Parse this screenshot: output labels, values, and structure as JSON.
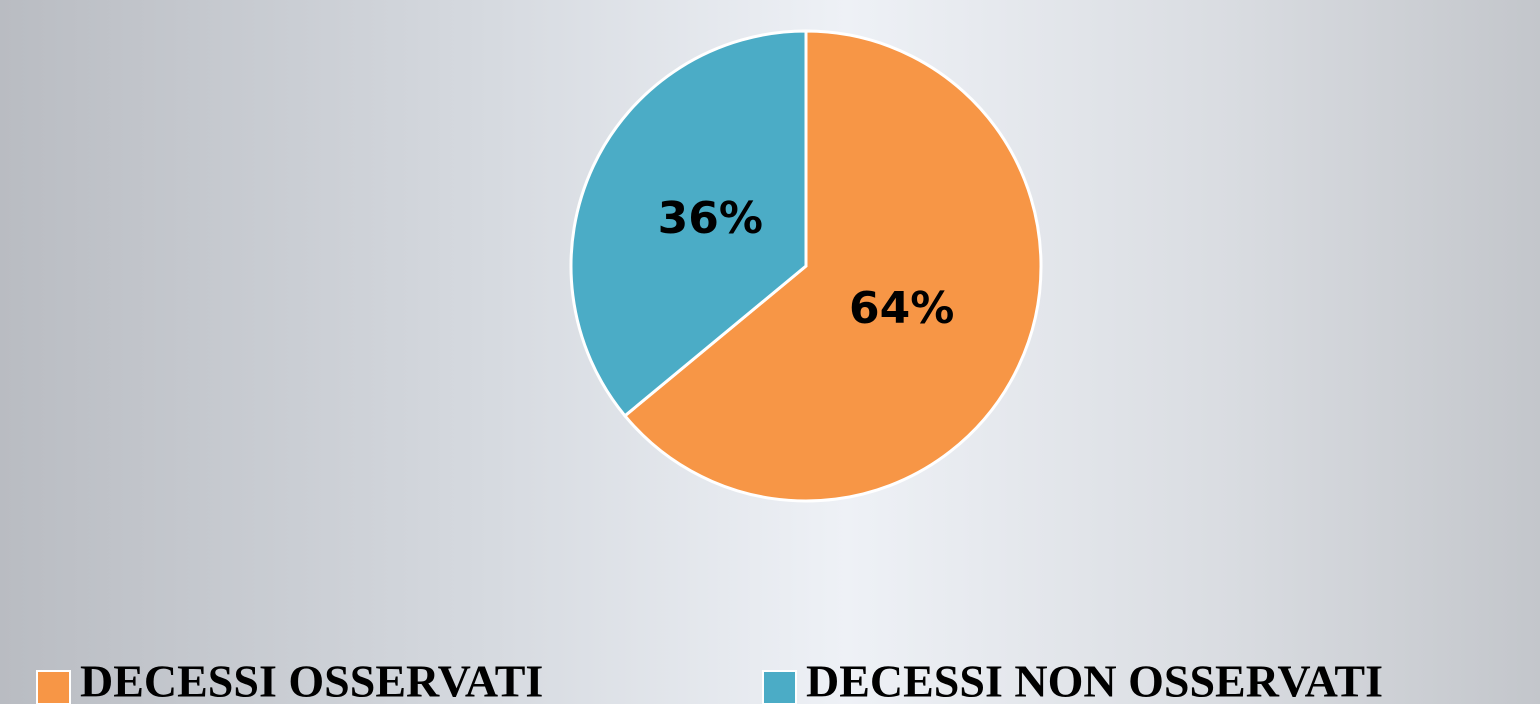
{
  "chart_data": {
    "type": "pie",
    "categories": [
      "DECESSI OSSERVATI",
      "DECESSI NON OSSERVATI"
    ],
    "values": [
      64,
      36
    ],
    "value_labels": [
      "64%",
      "36%"
    ],
    "colors": [
      "#f79646",
      "#4bacc6"
    ],
    "legend": "bottom"
  }
}
